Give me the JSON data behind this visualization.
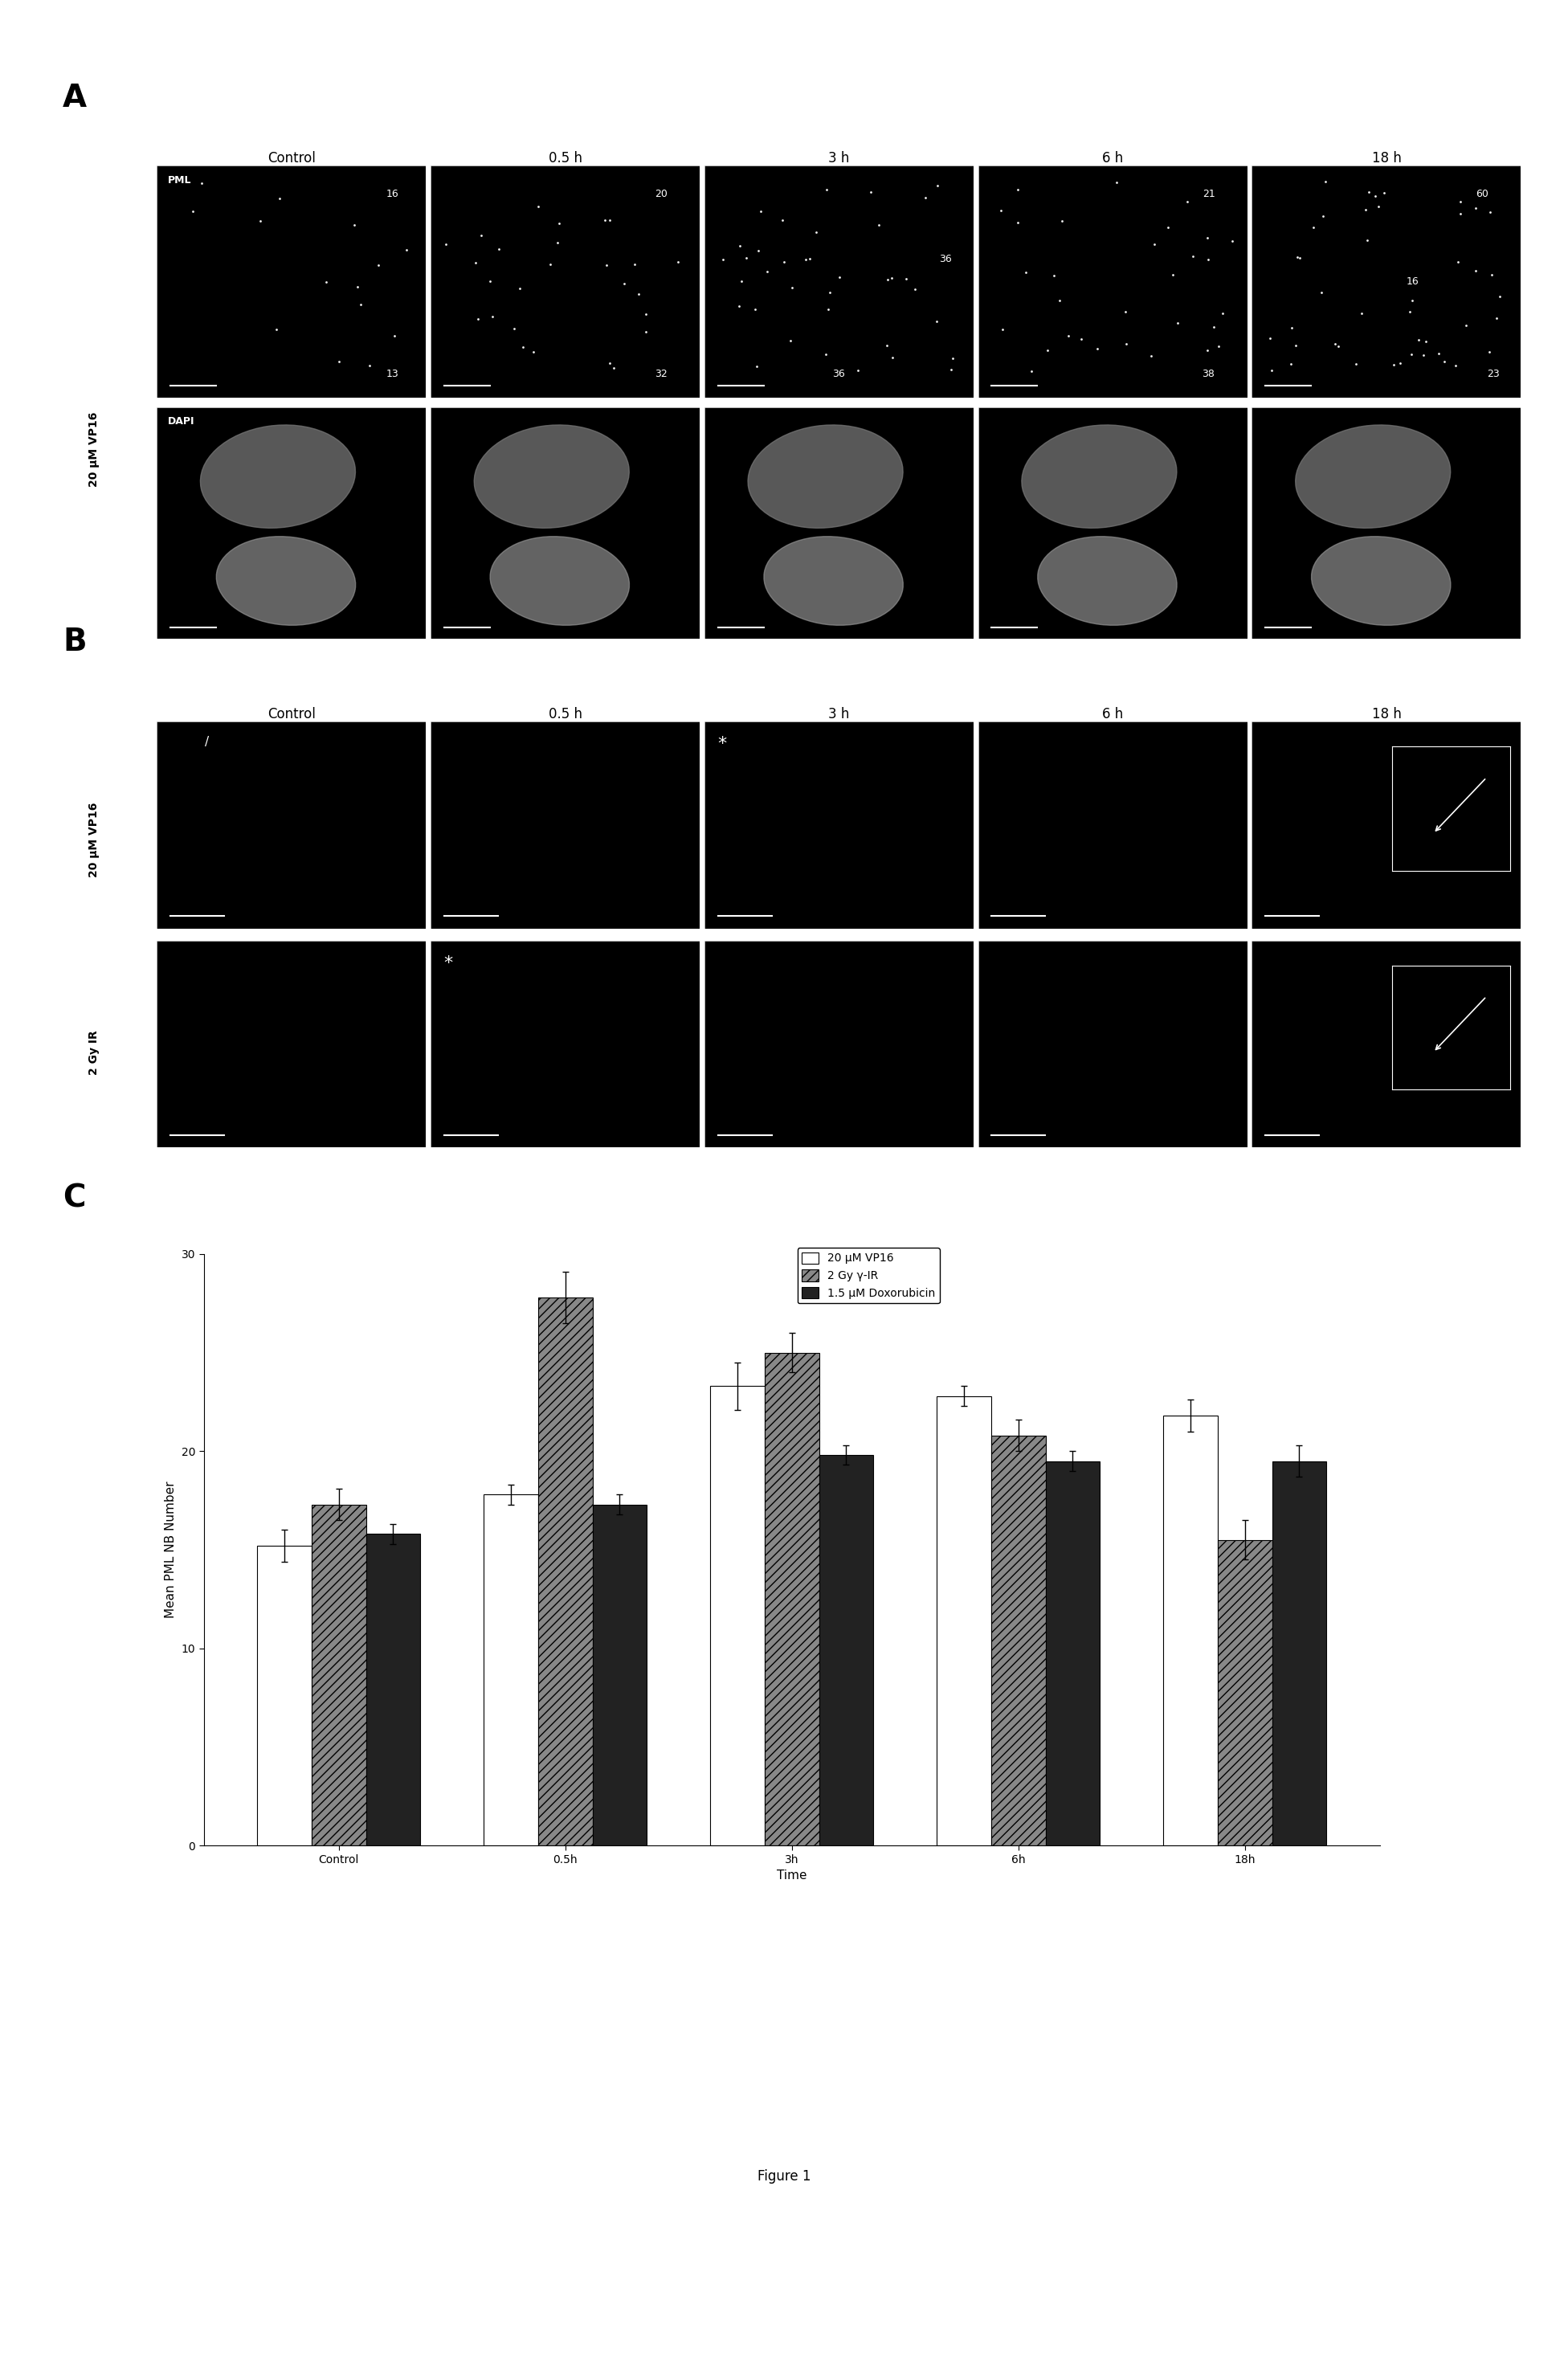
{
  "background_color": "#ffffff",
  "figure_caption": "Figure 1",
  "panel_A_label": "A",
  "panel_B_label": "B",
  "panel_C_label": "C",
  "col_headers": [
    "Control",
    "0.5 h",
    "3 h",
    "6 h",
    "18 h"
  ],
  "row_A_labels": [
    "PML",
    "DAPI"
  ],
  "y_rot_A": "20 μM VP16",
  "y_rot_B_top": "20 μM VP16",
  "y_rot_B_bot": "2 Gy IR",
  "cell_numbers_A_top": [
    [
      "16",
      "13"
    ],
    [
      "20",
      "32"
    ],
    [
      "36",
      "36"
    ],
    [
      "21",
      "38"
    ],
    [
      "60",
      "16",
      "23"
    ]
  ],
  "bar_categories": [
    "Control",
    "0.5h",
    "3h",
    "6h",
    "18h"
  ],
  "bar_vp16": [
    15.2,
    17.8,
    23.3,
    22.8,
    21.8
  ],
  "bar_ir": [
    17.3,
    27.8,
    25.0,
    20.8,
    15.5
  ],
  "bar_dox": [
    15.8,
    17.3,
    19.8,
    19.5,
    19.5
  ],
  "err_vp16": [
    0.8,
    0.5,
    1.2,
    0.5,
    0.8
  ],
  "err_ir": [
    0.8,
    1.3,
    1.0,
    0.8,
    1.0
  ],
  "err_dox": [
    0.5,
    0.5,
    0.5,
    0.5,
    0.8
  ],
  "bar_color_vp16": "#ffffff",
  "bar_color_ir": "#888888",
  "bar_color_dox": "#222222",
  "bar_edgecolor": "#000000",
  "legend_labels": [
    "20 μM VP16",
    "2 Gy γ-IR",
    "1.5 μM Doxorubicin"
  ],
  "legend_colors": [
    "#ffffff",
    "#888888",
    "#222222"
  ],
  "ylabel_C": "Mean PML NB Number",
  "xlabel_C": "Time",
  "ylim_C": [
    0,
    30
  ],
  "yticks_C": [
    0,
    10,
    20,
    30
  ],
  "panel_label_fontsize": 28,
  "axis_label_fontsize": 11,
  "tick_fontsize": 10,
  "legend_fontsize": 10,
  "col_header_fontsize": 12,
  "cell_number_fontsize": 9,
  "row_label_fontsize": 9,
  "caption_fontsize": 12
}
